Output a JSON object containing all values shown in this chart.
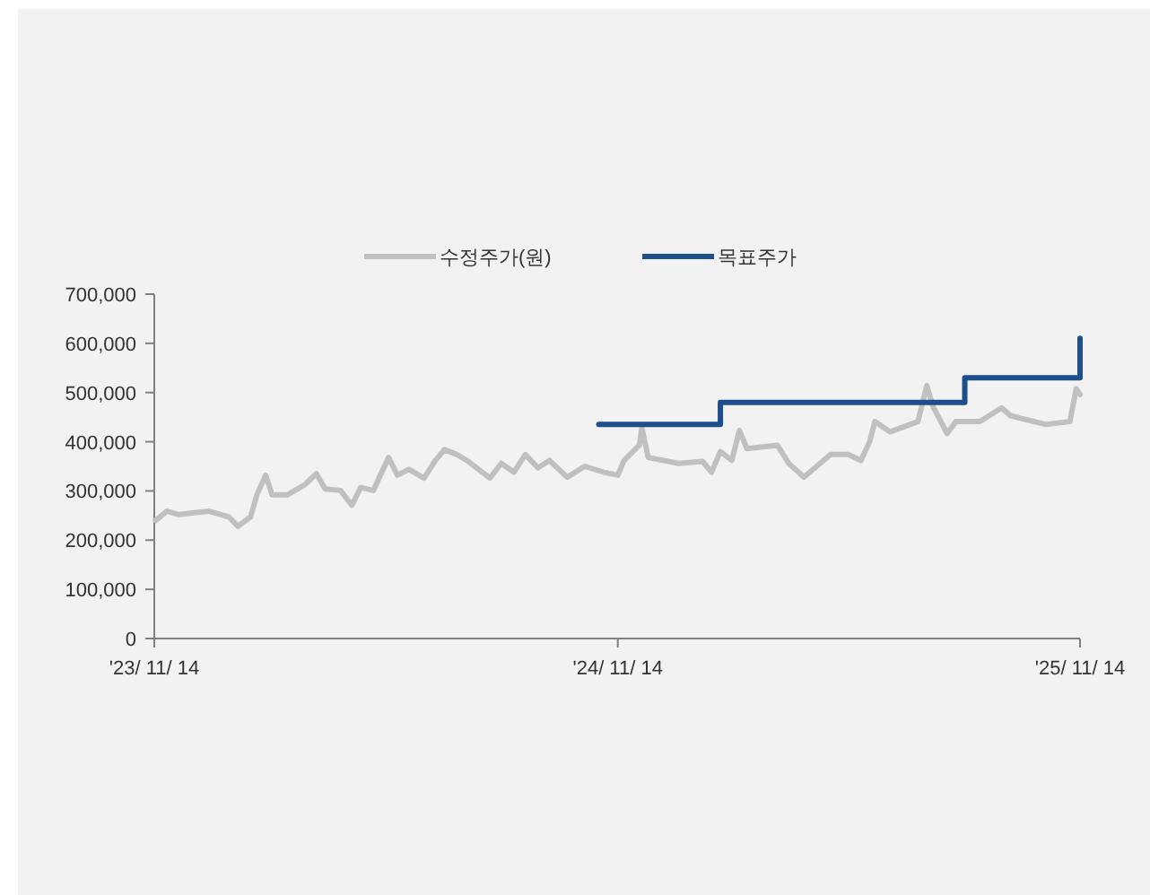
{
  "chart_data": {
    "type": "line",
    "xlim": [
      "2023-11-14",
      "2025-11-14"
    ],
    "xticks": [
      {
        "value": "2023-11-14",
        "label": "'23/ 11/ 14"
      },
      {
        "value": "2024-11-14",
        "label": "'24/ 11/ 14"
      },
      {
        "value": "2025-11-14",
        "label": "'25/ 11/ 14"
      }
    ],
    "ylim": [
      0,
      700000
    ],
    "yticks": [
      0,
      {
        "value": 100000,
        "label": "100,000"
      },
      {
        "value": 200000,
        "label": "200,000"
      },
      {
        "value": 300000,
        "label": "300,000"
      },
      {
        "value": 400000,
        "label": "400,000"
      },
      {
        "value": 500000,
        "label": "500,000"
      },
      {
        "value": 600000,
        "label": "600,000"
      },
      {
        "value": 700000,
        "label": "700,000"
      }
    ],
    "grid": false,
    "legend": "top",
    "marker": "none",
    "line_style": "solid",
    "series": [
      {
        "name": "수정주가(원)",
        "color": "#c0c0c0",
        "x": [
          "2023-11-15",
          "2023-11-24",
          "2023-12-03",
          "2023-12-27",
          "2024-01-12",
          "2024-01-19",
          "2024-01-29",
          "2024-02-03",
          "2024-02-10",
          "2024-02-15",
          "2024-02-27",
          "2024-03-12",
          "2024-03-21",
          "2024-03-28",
          "2024-04-09",
          "2024-04-18",
          "2024-04-25",
          "2024-05-05",
          "2024-05-17",
          "2024-05-24",
          "2024-06-02",
          "2024-06-14",
          "2024-06-23",
          "2024-06-30",
          "2024-07-10",
          "2024-07-19",
          "2024-08-05",
          "2024-08-14",
          "2024-08-24",
          "2024-09-02",
          "2024-09-12",
          "2024-09-21",
          "2024-10-05",
          "2024-10-19",
          "2024-11-03",
          "2024-11-14",
          "2024-11-19",
          "2024-12-01",
          "2024-12-03",
          "2024-12-08",
          "2025-01-01",
          "2025-01-20",
          "2025-01-27",
          "2025-02-03",
          "2025-02-12",
          "2025-02-18",
          "2025-02-24",
          "2025-03-20",
          "2025-03-29",
          "2025-04-10",
          "2025-05-01",
          "2025-05-15",
          "2025-05-25",
          "2025-06-01",
          "2025-06-05",
          "2025-06-17",
          "2025-07-09",
          "2025-07-16",
          "2025-07-21",
          "2025-08-01",
          "2025-08-08",
          "2025-08-27",
          "2025-09-13",
          "2025-09-20",
          "2025-10-18",
          "2025-11-06",
          "2025-11-11",
          "2025-11-14"
        ],
        "values": [
          240000,
          259000,
          252000,
          259000,
          247000,
          228000,
          247000,
          292000,
          332000,
          292000,
          292000,
          313000,
          335000,
          304000,
          301000,
          271000,
          307000,
          301000,
          368000,
          332000,
          344000,
          326000,
          362000,
          384000,
          374000,
          360000,
          326000,
          356000,
          338000,
          374000,
          347000,
          362000,
          328000,
          350000,
          338000,
          332000,
          362000,
          393000,
          429000,
          368000,
          356000,
          360000,
          338000,
          380000,
          362000,
          423000,
          386000,
          393000,
          356000,
          328000,
          374000,
          374000,
          362000,
          401000,
          441000,
          420000,
          441000,
          514000,
          471000,
          417000,
          441000,
          441000,
          469000,
          453000,
          435000,
          441000,
          508000,
          496000
        ]
      },
      {
        "name": "목표주가",
        "color": "#1f4e8c",
        "type": "step",
        "x": [
          "2024-10-30",
          "2025-02-03",
          "2025-08-15",
          "2025-11-14"
        ],
        "values": [
          435000,
          480000,
          530000,
          610000
        ]
      }
    ]
  }
}
